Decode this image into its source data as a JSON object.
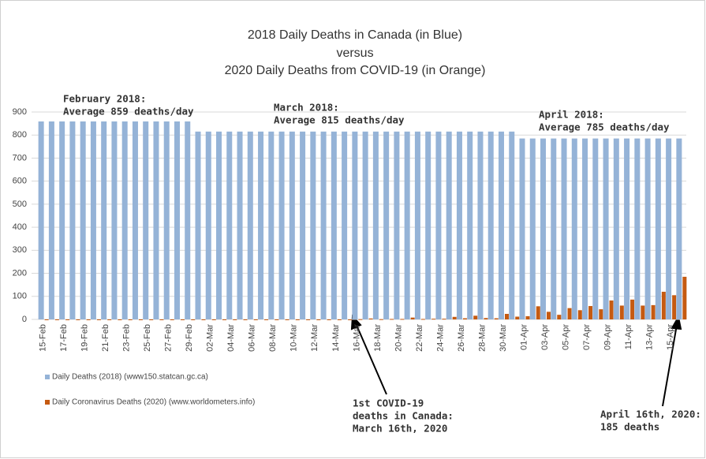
{
  "chart_data": {
    "type": "bar",
    "title": [
      "2018 Daily Deaths in Canada (in Blue)",
      "versus",
      "2020 Daily Deaths from COVID-19 (in Orange)"
    ],
    "categories": [
      "15-Feb",
      null,
      "17-Feb",
      null,
      "19-Feb",
      null,
      "21-Feb",
      null,
      "23-Feb",
      null,
      "25-Feb",
      null,
      "27-Feb",
      null,
      "29-Feb",
      null,
      "02-Mar",
      null,
      "04-Mar",
      null,
      "06-Mar",
      null,
      "08-Mar",
      null,
      "10-Mar",
      null,
      "12-Mar",
      null,
      "14-Mar",
      null,
      "16-Mar",
      null,
      "18-Mar",
      null,
      "20-Mar",
      null,
      "22-Mar",
      null,
      "24-Mar",
      null,
      "26-Mar",
      null,
      "28-Mar",
      null,
      "30-Mar",
      null,
      "01-Apr",
      null,
      "03-Apr",
      null,
      "05-Apr",
      null,
      "07-Apr",
      null,
      "09-Apr",
      null,
      "11-Apr",
      null,
      "13-Apr",
      null,
      "15-Apr",
      null
    ],
    "series": [
      {
        "name": "Daily Deaths (2018) (www150.statcan.gc.ca)",
        "color": "#95b3d7",
        "values": [
          859,
          859,
          859,
          859,
          859,
          859,
          859,
          859,
          859,
          859,
          859,
          859,
          859,
          859,
          859,
          815,
          815,
          815,
          815,
          815,
          815,
          815,
          815,
          815,
          815,
          815,
          815,
          815,
          815,
          815,
          815,
          815,
          815,
          815,
          815,
          815,
          815,
          815,
          815,
          815,
          815,
          815,
          815,
          815,
          815,
          815,
          785,
          785,
          785,
          785,
          785,
          785,
          785,
          785,
          785,
          785,
          785,
          785,
          785,
          785,
          785,
          785
        ]
      },
      {
        "name": "Daily Coronavirus Deaths (2020) (www.worldometers.info)",
        "color": "#c55a11",
        "values": [
          0,
          0,
          0,
          0,
          0,
          0,
          0,
          0,
          0,
          0,
          0,
          0,
          0,
          0,
          0,
          0,
          0,
          0,
          0,
          0,
          0,
          0,
          0,
          0,
          0,
          0,
          0,
          0,
          0,
          0,
          1,
          4,
          1,
          2,
          2,
          8,
          2,
          3,
          3,
          11,
          5,
          16,
          6,
          5,
          24,
          12,
          14,
          57,
          33,
          20,
          49,
          40,
          58,
          44,
          82,
          60,
          86,
          60,
          62,
          120,
          105,
          185
        ]
      }
    ],
    "ylim": [
      0,
      900
    ],
    "yticks": [
      0,
      100,
      200,
      300,
      400,
      500,
      600,
      700,
      800,
      900
    ],
    "grid": true,
    "annotations": [
      [
        "February 2018:",
        "Average 859 deaths/day"
      ],
      [
        "March 2018:",
        "Average 815 deaths/day"
      ],
      [
        "April 2018:",
        "Average 785 deaths/day"
      ],
      [
        "1st COVID-19",
        "deaths in Canada:",
        "March 16th, 2020"
      ],
      [
        "April 16th, 2020:",
        "185 deaths"
      ]
    ]
  }
}
